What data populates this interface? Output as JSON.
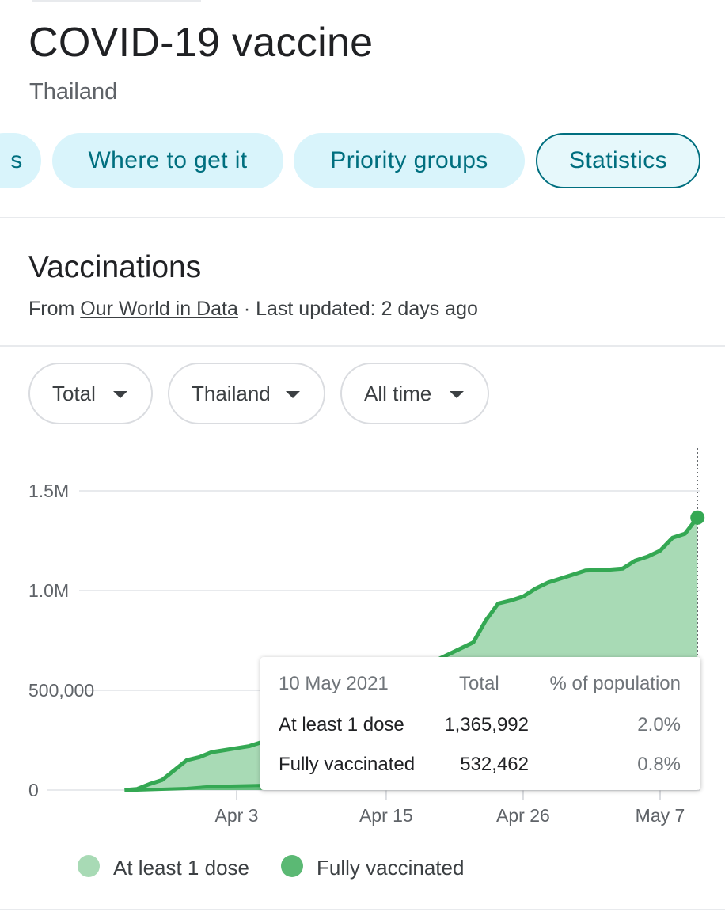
{
  "header": {
    "title": "COVID-19 vaccine",
    "subtitle": "Thailand"
  },
  "tabs": [
    {
      "label": "s",
      "active": false
    },
    {
      "label": "Where to get it",
      "active": false
    },
    {
      "label": "Priority groups",
      "active": false
    },
    {
      "label": "Statistics",
      "active": true
    }
  ],
  "section": {
    "title": "Vaccinations",
    "source_prefix": "From ",
    "source_link": "Our World in Data",
    "source_suffix": " · Last updated: 2 days ago"
  },
  "filters": [
    {
      "label": "Total"
    },
    {
      "label": "Thailand"
    },
    {
      "label": "All time"
    }
  ],
  "colors": {
    "accent": "#006f7f",
    "dose1_fill": "#a8dab5",
    "line": "#34a853",
    "fully_fill": "#5bb974"
  },
  "chart_data": {
    "type": "area",
    "y_tick_labels": [
      "0",
      "500,000",
      "1.0M",
      "1.5M"
    ],
    "y_ticks": [
      0,
      500000,
      1000000,
      1500000
    ],
    "ylim": [
      0,
      1700000
    ],
    "x_tick_labels": [
      "Apr 3",
      "Apr 15",
      "Apr 26",
      "May 7"
    ],
    "x_ticks": [
      "2021-04-03",
      "2021-04-15",
      "2021-04-26",
      "2021-05-07"
    ],
    "xlim": [
      "2021-03-20",
      "2021-05-11"
    ],
    "series": [
      {
        "name": "At least 1 dose",
        "x": [
          "2021-03-25",
          "2021-03-26",
          "2021-03-27",
          "2021-03-28",
          "2021-03-29",
          "2021-03-30",
          "2021-03-31",
          "2021-04-01",
          "2021-04-02",
          "2021-04-03",
          "2021-04-04",
          "2021-04-05",
          "2021-04-06",
          "2021-04-22",
          "2021-04-23",
          "2021-04-24",
          "2021-04-25",
          "2021-04-26",
          "2021-04-27",
          "2021-04-28",
          "2021-04-29",
          "2021-04-30",
          "2021-05-01",
          "2021-05-02",
          "2021-05-03",
          "2021-05-04",
          "2021-05-05",
          "2021-05-06",
          "2021-05-07",
          "2021-05-08",
          "2021-05-09",
          "2021-05-10"
        ],
        "values": [
          0,
          5000,
          30000,
          50000,
          100000,
          150000,
          165000,
          190000,
          200000,
          210000,
          220000,
          240000,
          260000,
          740000,
          850000,
          935000,
          950000,
          970000,
          1010000,
          1040000,
          1060000,
          1080000,
          1100000,
          1103000,
          1105000,
          1110000,
          1150000,
          1170000,
          1200000,
          1265000,
          1285000,
          1365992
        ]
      },
      {
        "name": "Fully vaccinated",
        "x": [
          "2021-03-25",
          "2021-03-26",
          "2021-03-30",
          "2021-04-01",
          "2021-04-04",
          "2021-04-06",
          "2021-05-10"
        ],
        "values": [
          0,
          0,
          8000,
          18000,
          22000,
          25000,
          532462
        ]
      }
    ],
    "tooltip": {
      "date": "10 May 2021",
      "col_total": "Total",
      "col_pct": "% of population",
      "rows": [
        {
          "label": "At least 1 dose",
          "total": "1,365,992",
          "pct": "2.0%"
        },
        {
          "label": "Fully vaccinated",
          "total": "532,462",
          "pct": "0.8%"
        }
      ]
    },
    "legend": [
      {
        "label": "At least 1 dose",
        "color": "#a8dab5"
      },
      {
        "label": "Fully vaccinated",
        "color": "#5bb974"
      }
    ],
    "grid": true,
    "legend_position": "bottom"
  }
}
